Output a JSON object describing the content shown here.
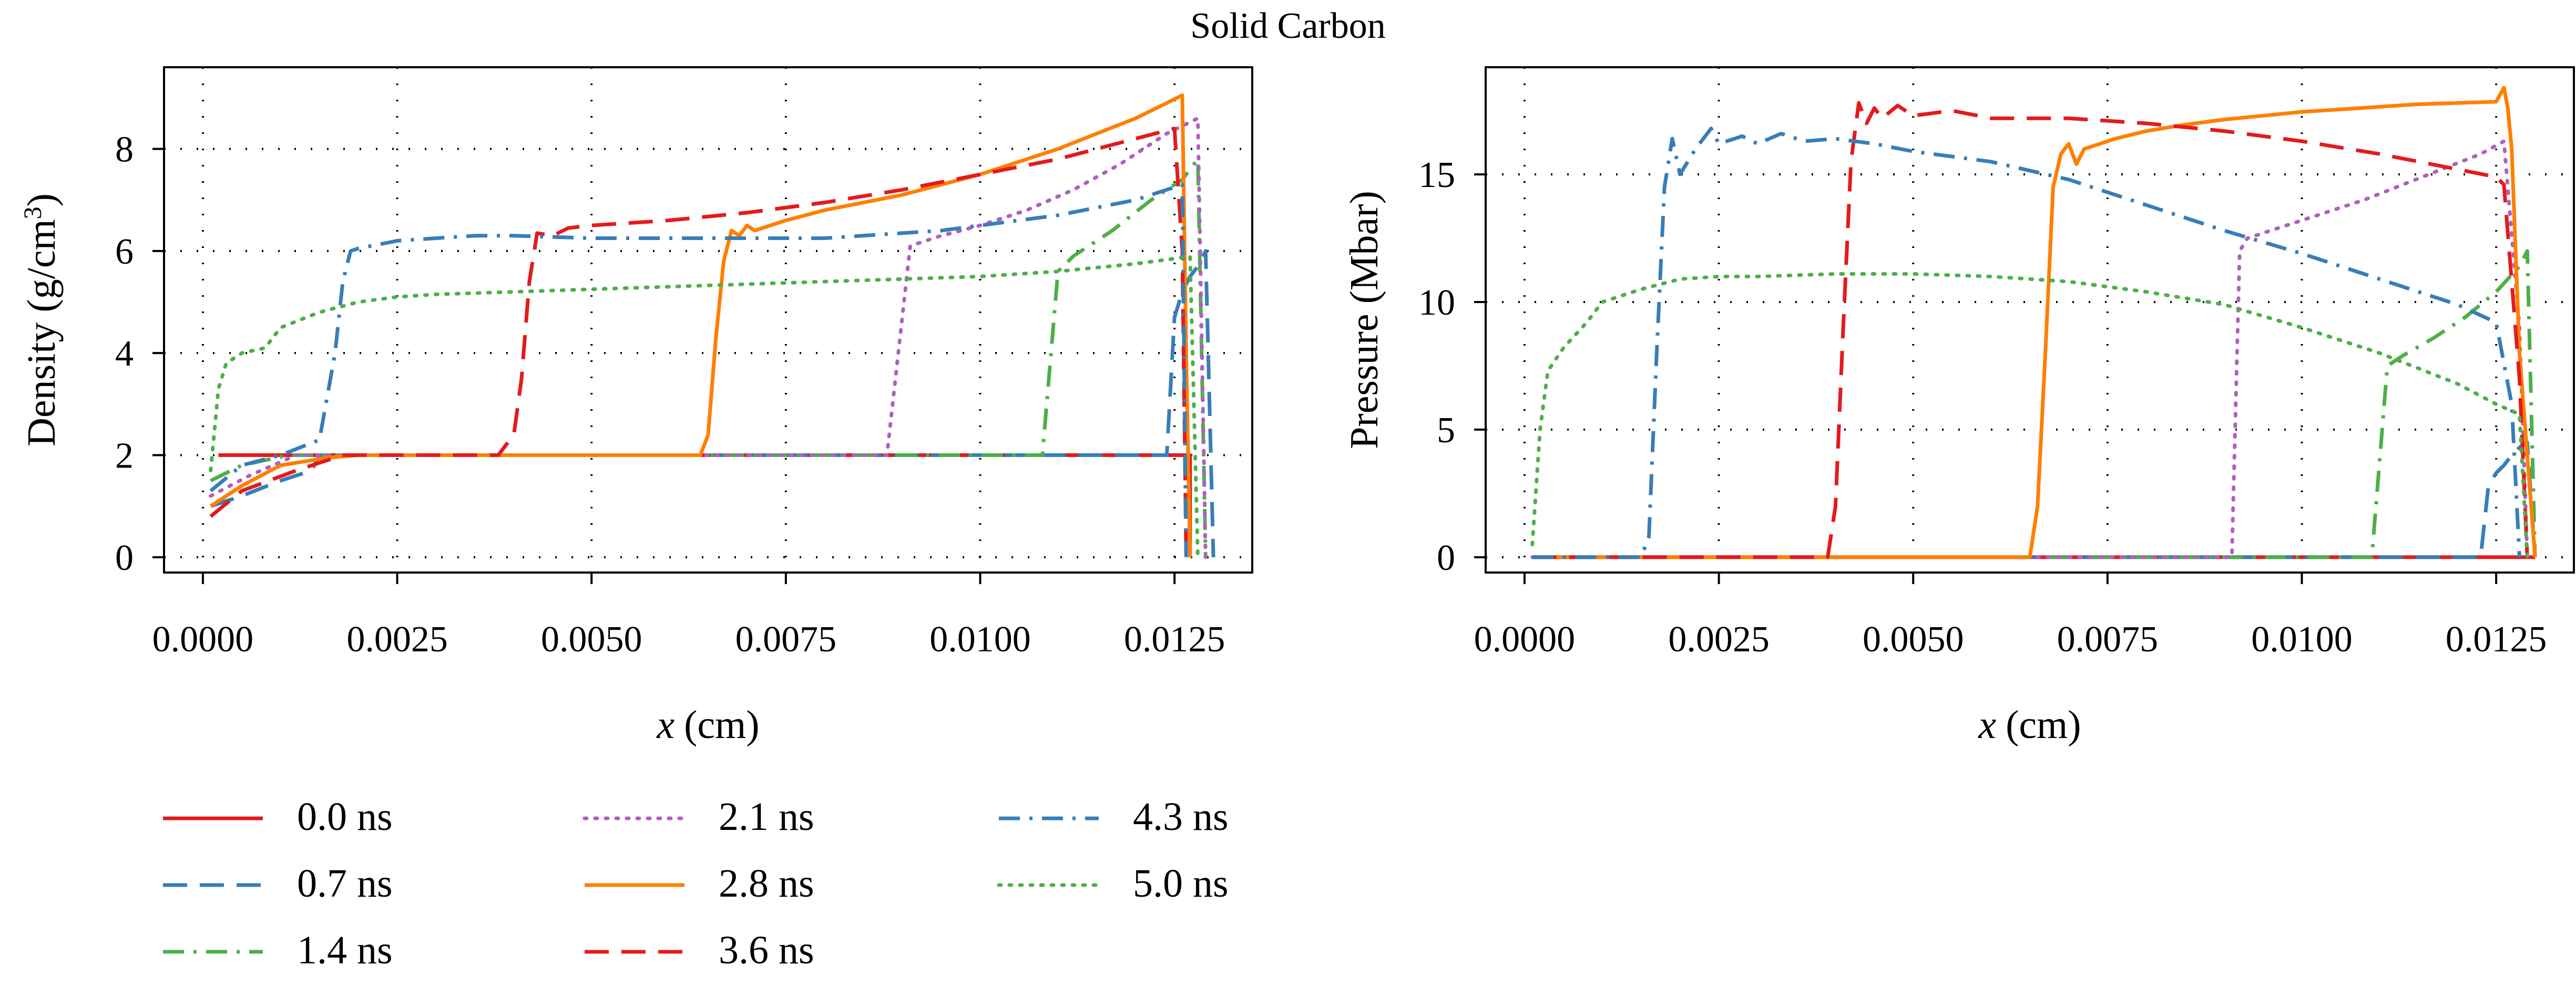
{
  "figure": {
    "title": "Solid Carbon"
  },
  "styles": {
    "0.0 ns": {
      "color": "#e41a1c",
      "dash": ""
    },
    "0.7 ns": {
      "color": "#377eb8",
      "dash": "46 24"
    },
    "1.4 ns": {
      "color": "#4daf4a",
      "dash": "40 18 6 18"
    },
    "2.1 ns": {
      "color": "#b05fc0",
      "dash": "4 16"
    },
    "2.8 ns": {
      "color": "#ff7f00",
      "dash": ""
    },
    "3.6 ns": {
      "color": "#e41a1c",
      "dash": "46 24"
    },
    "4.3 ns": {
      "color": "#377eb8",
      "dash": "40 18 6 18"
    },
    "5.0 ns": {
      "color": "#4daf4a",
      "dash": "4 16"
    }
  },
  "legend": {
    "columns": [
      [
        "0.0 ns",
        "0.7 ns",
        "1.4 ns"
      ],
      [
        "2.1 ns",
        "2.8 ns",
        "3.6 ns"
      ],
      [
        "4.3 ns",
        "5.0 ns"
      ]
    ]
  },
  "chart_data": [
    {
      "type": "line",
      "title": "",
      "xlabel": "x (cm)",
      "xlabel_var": "x",
      "xlabel_unit": "(cm)",
      "ylabel": "Density (g/cm3)",
      "xlim": [
        -0.0005,
        0.0135
      ],
      "ylim": [
        -0.3,
        9.6
      ],
      "xticks": [
        0.0,
        0.0025,
        0.005,
        0.0075,
        0.01,
        0.0125
      ],
      "xtick_labels": [
        "0.0000",
        "0.0025",
        "0.0050",
        "0.0075",
        "0.0100",
        "0.0125"
      ],
      "yticks": [
        0,
        2,
        4,
        6,
        8
      ],
      "ytick_labels": [
        "0",
        "2",
        "4",
        "6",
        "8"
      ],
      "grid": "dotted",
      "series": [
        {
          "name": "0.0 ns",
          "x": [
            0.0002,
            0.0127,
            0.0127
          ],
          "y": [
            2.0,
            2.0,
            0.0
          ]
        },
        {
          "name": "0.7 ns",
          "x": [
            0.0001,
            0.0005,
            0.001,
            0.0014,
            0.0015,
            0.012,
            0.0124,
            0.0125,
            0.0126,
            0.0127,
            0.0128,
            0.0129,
            0.013
          ],
          "y": [
            1.0,
            1.2,
            1.5,
            1.7,
            2.0,
            2.0,
            2.0,
            4.7,
            5.2,
            5.5,
            5.7,
            6.0,
            0.0
          ]
        },
        {
          "name": "1.4 ns",
          "x": [
            0.0001,
            0.0005,
            0.0011,
            0.0014,
            0.0108,
            0.011,
            0.0112,
            0.0117,
            0.0122,
            0.0126,
            0.0128,
            0.0129
          ],
          "y": [
            1.5,
            1.8,
            2.0,
            2.0,
            2.0,
            5.6,
            5.9,
            6.4,
            7.0,
            7.4,
            7.8,
            0.0
          ]
        },
        {
          "name": "2.1 ns",
          "x": [
            0.0001,
            0.0006,
            0.0012,
            0.0088,
            0.0091,
            0.0095,
            0.01,
            0.0106,
            0.0112,
            0.0118,
            0.0124,
            0.0128,
            0.0129
          ],
          "y": [
            1.2,
            1.6,
            2.0,
            2.0,
            6.1,
            6.3,
            6.5,
            6.8,
            7.2,
            7.7,
            8.3,
            8.6,
            0.0
          ]
        },
        {
          "name": "2.8 ns",
          "x": [
            0.0001,
            0.0005,
            0.001,
            0.0016,
            0.002,
            0.0064,
            0.0065,
            0.0066,
            0.0067,
            0.0068,
            0.0069,
            0.007,
            0.0071,
            0.0075,
            0.008,
            0.0085,
            0.009,
            0.0095,
            0.01,
            0.0105,
            0.011,
            0.0115,
            0.012,
            0.0124,
            0.0126,
            0.01265,
            0.0127
          ],
          "y": [
            1.0,
            1.4,
            1.8,
            1.95,
            2.0,
            2.0,
            2.4,
            4.3,
            5.8,
            6.4,
            6.3,
            6.5,
            6.4,
            6.6,
            6.8,
            6.95,
            7.1,
            7.3,
            7.5,
            7.75,
            8.0,
            8.3,
            8.6,
            8.9,
            9.05,
            4.0,
            0.0
          ]
        },
        {
          "name": "3.6 ns",
          "x": [
            0.0001,
            0.0005,
            0.0012,
            0.0018,
            0.0038,
            0.004,
            0.0041,
            0.0042,
            0.0043,
            0.0045,
            0.0047,
            0.005,
            0.0055,
            0.006,
            0.007,
            0.008,
            0.009,
            0.01,
            0.011,
            0.012,
            0.0125,
            0.0126,
            0.01265
          ],
          "y": [
            0.8,
            1.3,
            1.7,
            2.0,
            2.0,
            2.4,
            3.5,
            5.4,
            6.35,
            6.3,
            6.45,
            6.5,
            6.55,
            6.6,
            6.75,
            6.95,
            7.2,
            7.5,
            7.8,
            8.2,
            8.4,
            6.0,
            0.0
          ]
        },
        {
          "name": "4.3 ns",
          "x": [
            0.0001,
            0.0005,
            0.001,
            0.0015,
            0.0017,
            0.0018,
            0.0019,
            0.002,
            0.0025,
            0.003,
            0.0035,
            0.004,
            0.005,
            0.006,
            0.007,
            0.008,
            0.009,
            0.0095,
            0.01,
            0.0105,
            0.011,
            0.0115,
            0.012,
            0.0124,
            0.0126,
            0.01265
          ],
          "y": [
            1.3,
            1.8,
            2.0,
            2.3,
            4.0,
            5.4,
            6.0,
            6.05,
            6.2,
            6.25,
            6.3,
            6.3,
            6.25,
            6.25,
            6.25,
            6.25,
            6.35,
            6.4,
            6.5,
            6.6,
            6.7,
            6.85,
            7.0,
            7.2,
            7.3,
            0.0
          ]
        },
        {
          "name": "5.0 ns",
          "x": [
            0.0001,
            0.0002,
            0.0003,
            0.0005,
            0.0008,
            0.001,
            0.0015,
            0.002,
            0.0025,
            0.003,
            0.004,
            0.005,
            0.006,
            0.007,
            0.008,
            0.009,
            0.01,
            0.011,
            0.012,
            0.0125,
            0.0127,
            0.0128
          ],
          "y": [
            1.7,
            3.3,
            3.8,
            4.0,
            4.1,
            4.5,
            4.8,
            5.0,
            5.1,
            5.15,
            5.2,
            5.25,
            5.3,
            5.35,
            5.4,
            5.45,
            5.5,
            5.6,
            5.75,
            5.85,
            5.9,
            0.0
          ]
        }
      ]
    },
    {
      "type": "line",
      "title": "",
      "xlabel": "x (cm)",
      "xlabel_var": "x",
      "xlabel_unit": "(cm)",
      "ylabel": "Pressure (Mbar)",
      "xlim": [
        -0.0005,
        0.0135
      ],
      "ylim": [
        -0.6,
        19.2
      ],
      "xticks": [
        0.0,
        0.0025,
        0.005,
        0.0075,
        0.01,
        0.0125
      ],
      "xtick_labels": [
        "0.0000",
        "0.0025",
        "0.0050",
        "0.0075",
        "0.0100",
        "0.0125"
      ],
      "yticks": [
        0,
        5,
        10,
        15
      ],
      "ytick_labels": [
        "0",
        "5",
        "10",
        "15"
      ],
      "grid": "dotted",
      "series": [
        {
          "name": "0.0 ns",
          "x": [
            0.0002,
            0.0126,
            0.013
          ],
          "y": [
            0.0,
            0.0,
            0.0
          ]
        },
        {
          "name": "0.7 ns",
          "x": [
            0.0001,
            0.0123,
            0.0124,
            0.0125,
            0.0126,
            0.0127,
            0.0128,
            0.0129,
            0.013
          ],
          "y": [
            0.0,
            0.0,
            2.8,
            3.3,
            3.6,
            4.0,
            4.3,
            4.5,
            0.0
          ]
        },
        {
          "name": "1.4 ns",
          "x": [
            0.0001,
            0.0109,
            0.0111,
            0.0113,
            0.0117,
            0.0121,
            0.0125,
            0.0128,
            0.0129,
            0.013
          ],
          "y": [
            0.0,
            0.0,
            7.5,
            7.9,
            8.6,
            9.4,
            10.4,
            11.4,
            12.0,
            0.0
          ]
        },
        {
          "name": "2.1 ns",
          "x": [
            0.0001,
            0.0091,
            0.0092,
            0.0093,
            0.0098,
            0.0103,
            0.0108,
            0.0113,
            0.0118,
            0.0123,
            0.0126,
            0.0128,
            0.0129
          ],
          "y": [
            0.0,
            0.0,
            12.0,
            12.5,
            13.0,
            13.5,
            14.0,
            14.6,
            15.2,
            15.8,
            16.3,
            9.0,
            0.0
          ]
        },
        {
          "name": "2.8 ns",
          "x": [
            0.0001,
            0.0065,
            0.0066,
            0.0067,
            0.0068,
            0.0069,
            0.007,
            0.0071,
            0.0072,
            0.0074,
            0.0076,
            0.008,
            0.0085,
            0.009,
            0.0095,
            0.01,
            0.0105,
            0.011,
            0.0115,
            0.012,
            0.0125,
            0.0126,
            0.01265,
            0.0127,
            0.0128,
            0.013
          ],
          "y": [
            0.0,
            0.0,
            2.0,
            8.0,
            14.5,
            15.8,
            16.2,
            15.4,
            16.0,
            16.2,
            16.4,
            16.7,
            16.95,
            17.15,
            17.3,
            17.45,
            17.55,
            17.65,
            17.75,
            17.8,
            17.85,
            18.4,
            17.6,
            16.0,
            8.0,
            0.0
          ]
        },
        {
          "name": "3.6 ns",
          "x": [
            0.0001,
            0.0039,
            0.004,
            0.0041,
            0.0042,
            0.0043,
            0.0044,
            0.0045,
            0.0046,
            0.0048,
            0.005,
            0.0055,
            0.006,
            0.007,
            0.008,
            0.009,
            0.01,
            0.011,
            0.012,
            0.0125,
            0.0126,
            0.0128,
            0.0129
          ],
          "y": [
            0.0,
            0.0,
            2.0,
            9.0,
            15.5,
            17.8,
            17.0,
            17.6,
            17.2,
            17.7,
            17.3,
            17.5,
            17.2,
            17.2,
            17.0,
            16.7,
            16.3,
            15.8,
            15.2,
            14.9,
            14.6,
            7.0,
            0.0
          ]
        },
        {
          "name": "4.3 ns",
          "x": [
            0.0001,
            0.0015,
            0.0016,
            0.0017,
            0.0018,
            0.0019,
            0.002,
            0.0022,
            0.0024,
            0.0025,
            0.0028,
            0.003,
            0.0033,
            0.0036,
            0.004,
            0.0045,
            0.005,
            0.006,
            0.007,
            0.008,
            0.009,
            0.01,
            0.011,
            0.012,
            0.0125,
            0.0127,
            0.0128
          ],
          "y": [
            0.0,
            0.0,
            0.8,
            8.0,
            14.5,
            16.4,
            15.0,
            16.0,
            16.8,
            16.2,
            16.5,
            16.2,
            16.6,
            16.3,
            16.4,
            16.2,
            15.9,
            15.5,
            14.8,
            13.8,
            12.8,
            11.9,
            10.9,
            9.9,
            9.2,
            6.0,
            0.0
          ]
        },
        {
          "name": "5.0 ns",
          "x": [
            0.0001,
            0.0002,
            0.0003,
            0.0005,
            0.0008,
            0.001,
            0.0015,
            0.002,
            0.0025,
            0.003,
            0.004,
            0.005,
            0.006,
            0.007,
            0.008,
            0.009,
            0.01,
            0.011,
            0.012,
            0.0125,
            0.0128,
            0.0129
          ],
          "y": [
            0.5,
            5.0,
            7.3,
            8.2,
            9.2,
            10.0,
            10.5,
            10.9,
            11.0,
            11.0,
            11.1,
            11.1,
            11.0,
            10.8,
            10.4,
            9.9,
            9.0,
            8.0,
            6.8,
            6.0,
            5.6,
            0.0
          ]
        }
      ]
    }
  ]
}
